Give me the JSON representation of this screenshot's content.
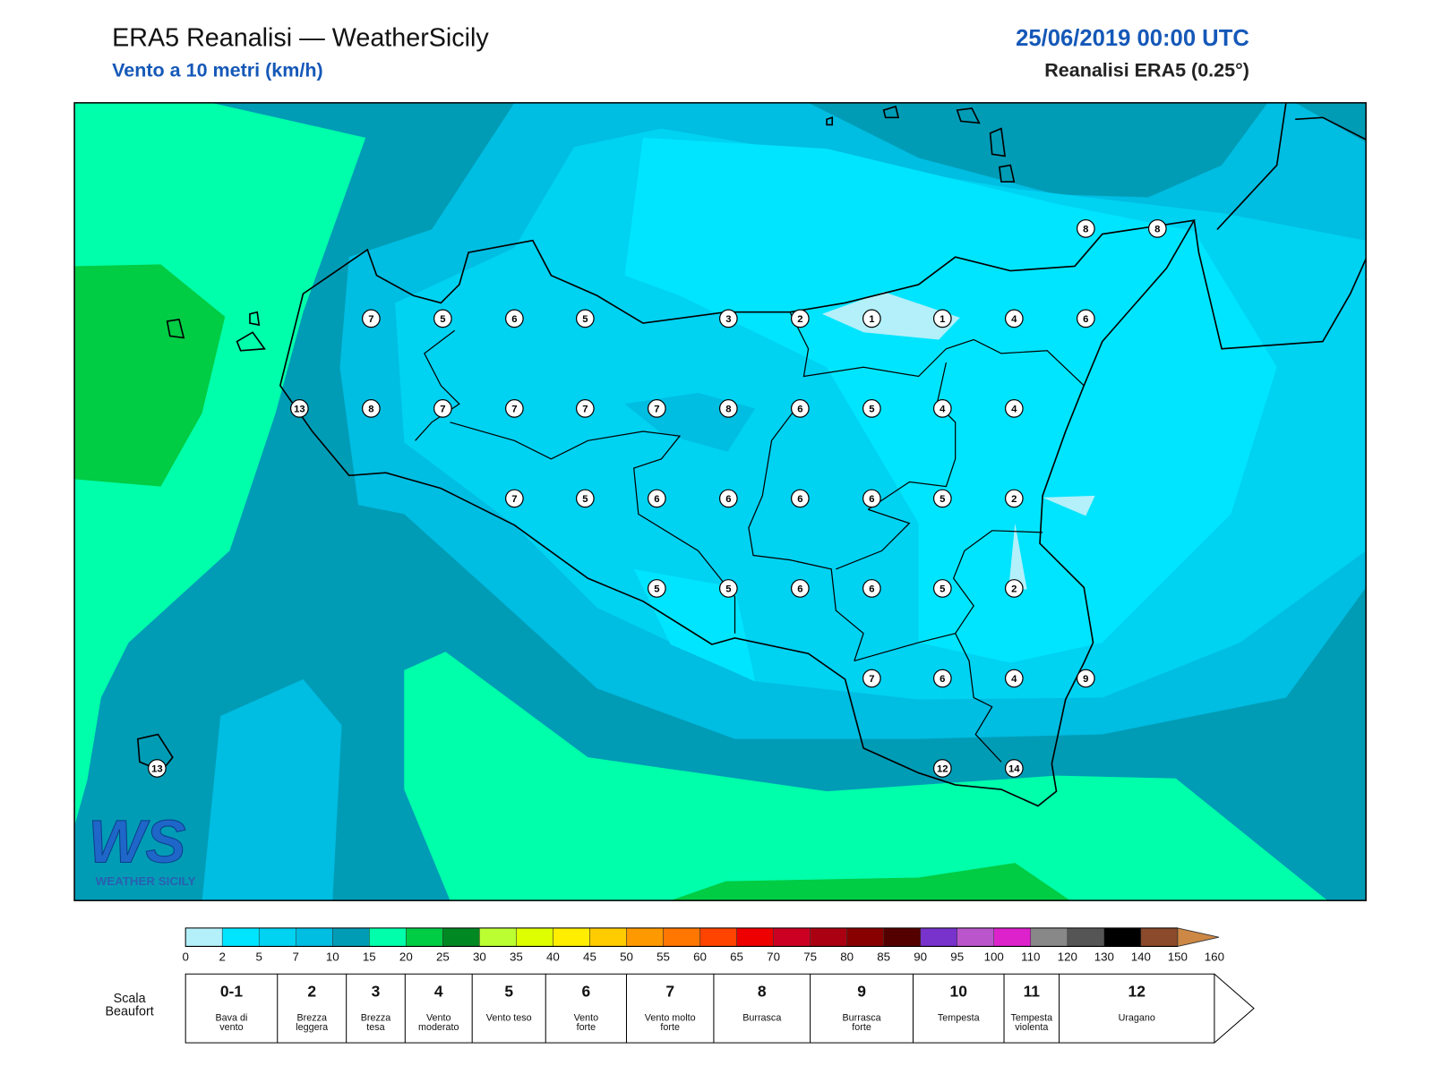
{
  "header": {
    "title": "ERA5 Reanalisi — WeatherSicily",
    "subtitle": "Vento a 10 metri (km/h)",
    "datetime": "25/06/2019 00:00 UTC",
    "source": "Reanalisi ERA5 (0.25°)"
  },
  "stations": [
    8,
    8,
    7,
    5,
    6,
    5,
    3,
    2,
    1,
    1,
    4,
    6,
    13,
    8,
    7,
    7,
    7,
    7,
    8,
    6,
    5,
    4,
    4,
    7,
    5,
    6,
    6,
    6,
    6,
    5,
    2,
    5,
    5,
    6,
    6,
    5,
    2,
    7,
    6,
    4,
    9,
    13,
    12,
    14
  ],
  "colorbar": {
    "ticks": [
      0,
      2,
      5,
      7,
      10,
      15,
      20,
      25,
      30,
      35,
      40,
      45,
      50,
      55,
      60,
      65,
      70,
      75,
      80,
      85,
      90,
      95,
      100,
      110,
      120,
      130,
      140,
      150,
      160
    ],
    "colors": [
      "#b3f0fa",
      "#00e5ff",
      "#00d2f2",
      "#00bde2",
      "#009cb6",
      "#00ffaa",
      "#00cc44",
      "#008822",
      "#bbff33",
      "#ddff00",
      "#ffee00",
      "#ffcc00",
      "#ff9900",
      "#ff7700",
      "#ff4400",
      "#ee0000",
      "#cc0022",
      "#aa0011",
      "#880000",
      "#550000",
      "#7733cc",
      "#bb55cc",
      "#dd22cc",
      "#888888",
      "#555555",
      "#000000",
      "#8b4a2b",
      "#cc8844"
    ]
  },
  "beaufort": {
    "label": "Scala Beaufort",
    "levels": [
      {
        "force": "0-1",
        "name": "Bava di vento"
      },
      {
        "force": 2,
        "name": "Brezza leggera"
      },
      {
        "force": 3,
        "name": "Brezza tesa"
      },
      {
        "force": 4,
        "name": "Vento moderato"
      },
      {
        "force": 5,
        "name": "Vento teso"
      },
      {
        "force": 6,
        "name": "Vento forte"
      },
      {
        "force": 7,
        "name": "Vento molto forte"
      },
      {
        "force": 8,
        "name": "Burrasca"
      },
      {
        "force": 9,
        "name": "Burrasca forte"
      },
      {
        "force": 10,
        "name": "Tempesta"
      },
      {
        "force": 11,
        "name": "Tempesta violenta"
      },
      {
        "force": 12,
        "name": "Uragano"
      }
    ]
  },
  "logo": {
    "initials": "WS",
    "name": "WEATHER SICILY"
  }
}
